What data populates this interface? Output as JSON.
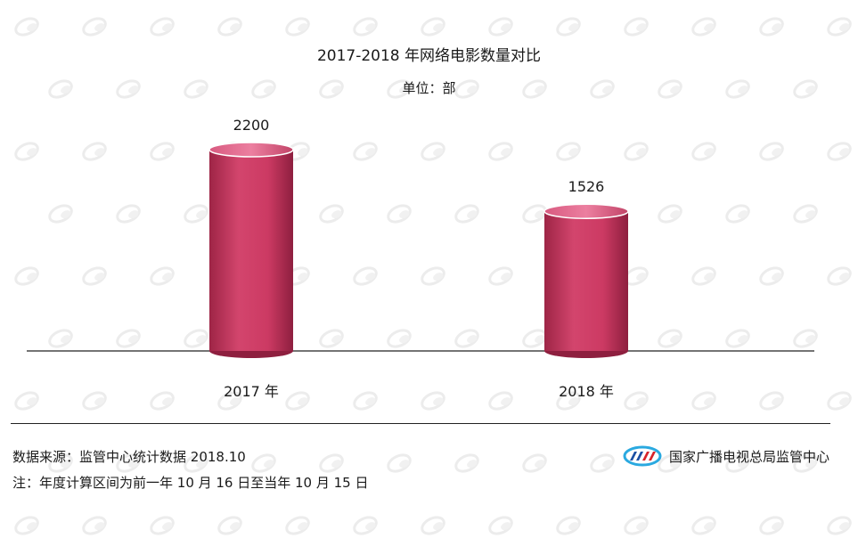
{
  "chart_data": {
    "type": "bar",
    "title": "2017-2018 年网络电影数量对比",
    "subtitle": "单位：部",
    "categories": [
      "2017 年",
      "2018 年"
    ],
    "values": [
      2200,
      1526
    ],
    "data_labels": [
      "2200",
      "1526"
    ],
    "ylim": [
      0,
      2500
    ],
    "grid": false,
    "bar_style": "cylinder",
    "colors": {
      "bar": "#c8365f",
      "bar_dark": "#8e1f3f",
      "bar_light": "#e06a8c",
      "baseline": "#222222"
    }
  },
  "footer": {
    "source": "数据来源：监管中心统计数据 2018.10",
    "note": "注：年度计算区间为前一年 10 月 16 日至当年 10 月 15 日",
    "org_name": "国家广播电视总局监管中心",
    "logo_icon": "nrta-logo-icon"
  }
}
